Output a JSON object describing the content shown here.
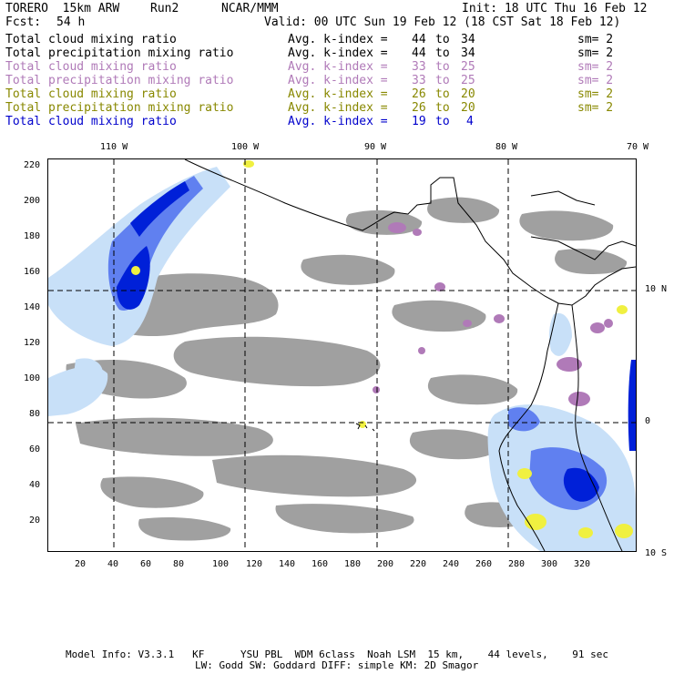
{
  "header": {
    "model": "TORERO  15km ARW",
    "run": "Run2",
    "org": "NCAR/MMM",
    "init": "Init: 18 UTC Thu 16 Feb 12",
    "fcst_label": "Fcst:",
    "fcst_value": "54 h",
    "valid": "Valid: 00 UTC Sun 19 Feb 12 (18 CST Sat 18 Feb 12)"
  },
  "legend": [
    {
      "field": "Total cloud mixing ratio",
      "index": "Avg. k-index =",
      "from": "44",
      "to_word": "to",
      "to": "34",
      "sm": "sm= 2",
      "color": "#000000"
    },
    {
      "field": "Total precipitation mixing ratio",
      "index": "Avg. k-index =",
      "from": "44",
      "to_word": "to",
      "to": "34",
      "sm": "sm= 2",
      "color": "#000000"
    },
    {
      "field": "Total cloud mixing ratio",
      "index": "Avg. k-index =",
      "from": "33",
      "to_word": "to",
      "to": "25",
      "sm": "sm= 2",
      "color": "#b07ab8"
    },
    {
      "field": "Total precipitation mixing ratio",
      "index": "Avg. k-index =",
      "from": "33",
      "to_word": "to",
      "to": "25",
      "sm": "sm= 2",
      "color": "#b07ab8"
    },
    {
      "field": "Total cloud mixing ratio",
      "index": "Avg. k-index =",
      "from": "26",
      "to_word": "to",
      "to": "20",
      "sm": "sm= 2",
      "color": "#888800"
    },
    {
      "field": "Total precipitation mixing ratio",
      "index": "Avg. k-index =",
      "from": "26",
      "to_word": "to",
      "to": "20",
      "sm": "sm= 2",
      "color": "#888800"
    },
    {
      "field": "Total cloud mixing ratio",
      "index": "Avg. k-index =",
      "from": "19",
      "to_word": "to",
      "to": "4",
      "sm": "",
      "color": "#0000cc"
    }
  ],
  "map": {
    "top_lon_labels": [
      "110 W",
      "100 W",
      "90 W",
      "80 W",
      "70 W"
    ],
    "right_lat_labels": [
      "10 N",
      "0",
      "10 S"
    ],
    "left_y_ticks": [
      "220",
      "200",
      "180",
      "160",
      "140",
      "120",
      "100",
      "80",
      "60",
      "40",
      "20"
    ],
    "bottom_x_ticks": [
      "20",
      "40",
      "60",
      "80",
      "100",
      "120",
      "140",
      "160",
      "180",
      "200",
      "220",
      "240",
      "260",
      "280",
      "300",
      "320"
    ],
    "colors": {
      "cloud_low": "#a0a0a0",
      "purple": "#b07ab8",
      "yellow": "#f0f040",
      "blue_light": "#c8e0f8",
      "blue_mid": "#6080f0",
      "blue_dark": "#0020d8",
      "coast": "#000000"
    }
  },
  "footer": {
    "line1": "Model Info: V3.3.1   KF      YSU PBL  WDM 6class  Noah LSM  15 km,    44 levels,    91 sec",
    "line2": "LW: Godd SW: Goddard DIFF: simple KM: 2D Smagor"
  }
}
